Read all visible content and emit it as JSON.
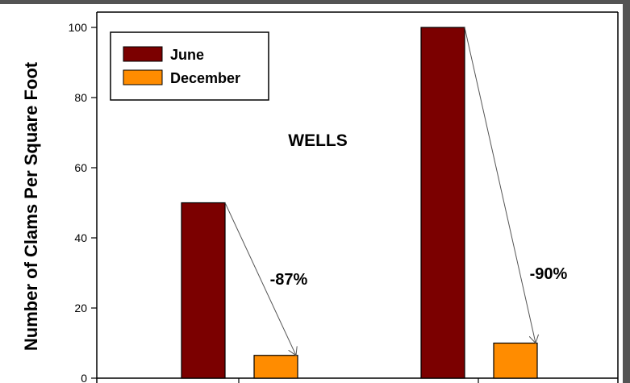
{
  "chart_data": {
    "type": "bar",
    "title": "WELLS",
    "ylabel": "Number of Clams Per Square Foot",
    "xlabel": "",
    "ylim": [
      0,
      100
    ],
    "yticks": [
      0,
      20,
      40,
      60,
      80,
      100
    ],
    "groups": 2,
    "series": [
      {
        "name": "June",
        "values": [
          50,
          100
        ],
        "color": "#7b0000"
      },
      {
        "name": "December",
        "values": [
          6.5,
          10
        ],
        "color": "#ff8c00"
      }
    ],
    "annotations": [
      "-87%",
      "-90%"
    ],
    "legend": "top-left",
    "grid": false
  }
}
